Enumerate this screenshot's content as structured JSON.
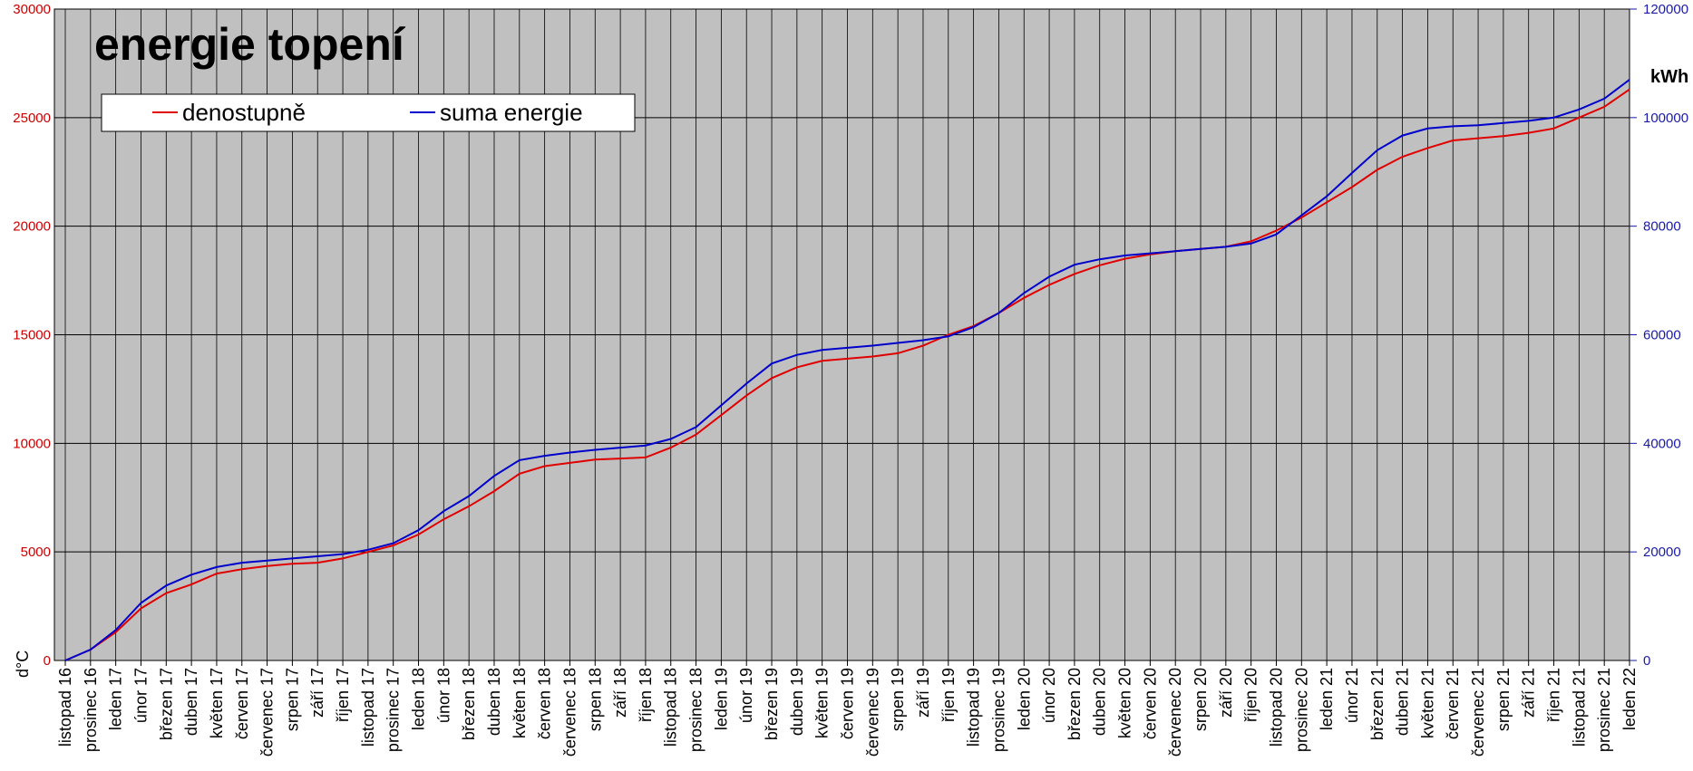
{
  "chart_data": {
    "type": "line",
    "title": "energie topení",
    "ylabel": "d°C",
    "y2label": "kWh",
    "ylim": [
      0,
      30000
    ],
    "y2lim": [
      0,
      120000
    ],
    "yticks": [
      "0",
      "5000",
      "10000",
      "15000",
      "20000",
      "25000",
      "30000"
    ],
    "y2ticks": [
      "0",
      "20000",
      "40000",
      "60000",
      "80000",
      "100000",
      "120000"
    ],
    "grid": true,
    "legend_placement": "top-left",
    "plot_background": "#c0c0c0",
    "categories": [
      "listopad 16",
      "prosinec 16",
      "leden 17",
      "únor 17",
      "březen 17",
      "duben 17",
      "květen 17",
      "červen 17",
      "červenec 17",
      "srpen 17",
      "září 17",
      "říjen 17",
      "listopad 17",
      "prosinec 17",
      "leden 18",
      "únor 18",
      "březen 18",
      "duben 18",
      "květen 18",
      "červen 18",
      "červenec 18",
      "srpen 18",
      "září 18",
      "říjen 18",
      "listopad 18",
      "prosinec 18",
      "leden 19",
      "únor 19",
      "březen 19",
      "duben 19",
      "květen 19",
      "červen 19",
      "červenec 19",
      "srpen 19",
      "září 19",
      "říjen 19",
      "listopad 19",
      "prosinec 19",
      "leden 20",
      "únor 20",
      "březen 20",
      "duben 20",
      "květen 20",
      "červen 20",
      "červenec 20",
      "srpen 20",
      "září 20",
      "říjen 20",
      "listopad 20",
      "prosinec 20",
      "leden 21",
      "únor 21",
      "březen 21",
      "duben 21",
      "květen 21",
      "červen 21",
      "červenec 21",
      "srpen 21",
      "září 21",
      "říjen 21",
      "listopad 21",
      "prosinec 21",
      "leden 22"
    ],
    "series": [
      {
        "name": "denostupně",
        "axis": "left",
        "color": "#e00000",
        "values": [
          0,
          500,
          1300,
          2400,
          3100,
          3500,
          4000,
          4200,
          4350,
          4450,
          4500,
          4700,
          5000,
          5300,
          5800,
          6500,
          7100,
          7800,
          8600,
          8950,
          9100,
          9250,
          9300,
          9350,
          9800,
          10400,
          11300,
          12200,
          13000,
          13500,
          13800,
          13900,
          14000,
          14150,
          14500,
          15000,
          15400,
          16000,
          16700,
          17300,
          17800,
          18200,
          18500,
          18700,
          18850,
          18950,
          19050,
          19300,
          19800,
          20400,
          21100,
          21800,
          22600,
          23200,
          23600,
          23950,
          24050,
          24150,
          24300,
          24500,
          25000,
          25500,
          26300
        ]
      },
      {
        "name": "suma energie",
        "axis": "right",
        "color": "#0000cc",
        "values": [
          0,
          2000,
          5600,
          10600,
          13800,
          15800,
          17200,
          18000,
          18400,
          18800,
          19200,
          19600,
          20400,
          21600,
          24000,
          27500,
          30300,
          34000,
          36900,
          37700,
          38300,
          38800,
          39200,
          39600,
          40800,
          43000,
          47000,
          51000,
          54700,
          56300,
          57200,
          57600,
          58000,
          58500,
          59000,
          59700,
          61400,
          64000,
          67700,
          70700,
          72900,
          73900,
          74600,
          75000,
          75400,
          75800,
          76200,
          76800,
          78500,
          82000,
          85500,
          89800,
          94000,
          96700,
          98000,
          98400,
          98600,
          99000,
          99400,
          100000,
          101500,
          103500,
          107000
        ]
      }
    ]
  }
}
